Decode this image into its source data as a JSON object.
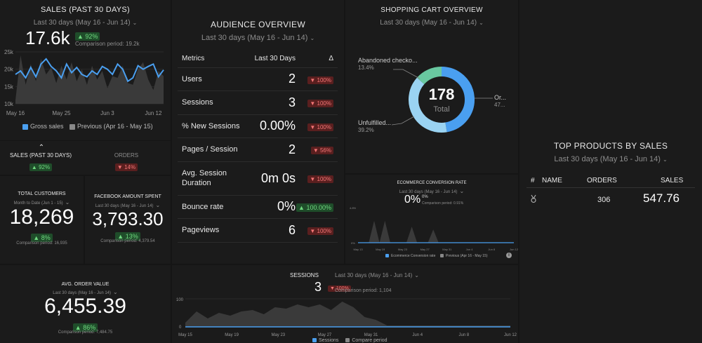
{
  "colors": {
    "accent": "#4a9ff0",
    "up": "#6fd97f",
    "down": "#f47676",
    "donut_dark": "#4a9ff0",
    "donut_light": "#9ad3f2",
    "donut_green": "#69c8a0"
  },
  "sales": {
    "title": "SALES (PAST 30 DAYS)",
    "period": "Last 30 days (May 16 - Jun 14)",
    "value": "17.6k",
    "delta": "▲ 92%",
    "comparison": "Comparison period: 19.2k",
    "legend_current": "Gross sales",
    "legend_previous": "Previous (Apr 16 - May 15)"
  },
  "chart_data": [
    {
      "type": "area",
      "title": "SALES (PAST 30 DAYS)",
      "x": [
        "May 16",
        "May 17",
        "May 18",
        "May 19",
        "May 20",
        "May 21",
        "May 22",
        "May 23",
        "May 24",
        "May 25",
        "May 26",
        "May 27",
        "May 28",
        "May 29",
        "May 30",
        "May 31",
        "Jun 1",
        "Jun 2",
        "Jun 3",
        "Jun 4",
        "Jun 5",
        "Jun 6",
        "Jun 7",
        "Jun 8",
        "Jun 9",
        "Jun 10",
        "Jun 11",
        "Jun 12",
        "Jun 13",
        "Jun 14"
      ],
      "xticks": [
        "May 16",
        "May 25",
        "Jun 3",
        "Jun 12"
      ],
      "ylim": [
        10000,
        25000
      ],
      "yticks": [
        "25k",
        "20k",
        "15k",
        "10k"
      ],
      "series": [
        {
          "name": "Gross sales",
          "values": [
            18500,
            19500,
            17500,
            20500,
            17800,
            21500,
            23000,
            20800,
            19500,
            17500,
            21500,
            19000,
            20500,
            18500,
            17800,
            19500,
            18500,
            20800,
            20000,
            18500,
            21500,
            20000,
            16500,
            17500,
            21000,
            20000,
            20800,
            21500,
            17800,
            19800
          ]
        },
        {
          "name": "Previous (Apr 16 - May 15)",
          "values": [
            11000,
            24000,
            15500,
            21500,
            16500,
            23000,
            18500,
            20500,
            16000,
            21000,
            17000,
            22000,
            16500,
            20000,
            15500,
            21000,
            17000,
            19500,
            14500,
            18000,
            17500,
            21000,
            16000,
            15500,
            20000,
            22000,
            17000,
            14000,
            19500,
            18000
          ]
        }
      ]
    },
    {
      "type": "pie",
      "title": "SHOPPING CART OVERVIEW",
      "categories": [
        "Ordered",
        "Unfulfilled checkouts",
        "Abandoned checkouts"
      ],
      "values": [
        47.4,
        39.2,
        13.4
      ]
    },
    {
      "type": "area",
      "title": "ECOMMERCE CONVERSION RATE",
      "x": [
        "May 15",
        "May 16",
        "May 17",
        "May 18",
        "May 19",
        "May 20",
        "May 21",
        "May 22",
        "May 23",
        "May 24",
        "May 25",
        "May 26",
        "May 27",
        "May 28",
        "May 29",
        "May 30",
        "May 31",
        "Jun 1",
        "Jun 2",
        "Jun 3",
        "Jun 4",
        "Jun 5",
        "Jun 6",
        "Jun 7",
        "Jun 8",
        "Jun 9",
        "Jun 10",
        "Jun 11",
        "Jun 12",
        "Jun 13"
      ],
      "xticks": [
        "May 13",
        "May 19",
        "May 23",
        "May 27",
        "May 31",
        "Jun 4",
        "Jun 8",
        "Jun 12"
      ],
      "ylim": [
        0,
        4.8
      ],
      "yticks": [
        "4.8%",
        "0%"
      ],
      "series": [
        {
          "name": "Ecommerce Conversion rate",
          "values": [
            0,
            0,
            0,
            0,
            0,
            0,
            0,
            0,
            0,
            0,
            0,
            0,
            0,
            0,
            0,
            0,
            0,
            0,
            0,
            0,
            0,
            0,
            0,
            0,
            0,
            0,
            0,
            0,
            0,
            0
          ]
        },
        {
          "name": "Previous (Apr 16 - May 15)",
          "values": [
            0,
            0,
            0,
            3.0,
            0,
            3.0,
            0,
            0,
            0,
            0,
            2.2,
            0,
            0,
            0,
            1.8,
            0,
            0,
            0,
            0,
            0,
            0,
            0,
            0,
            0,
            0,
            0,
            0,
            0,
            0,
            0
          ]
        }
      ]
    },
    {
      "type": "area",
      "title": "SESSIONS",
      "x": [
        "May 15",
        "May 16",
        "May 17",
        "May 18",
        "May 19",
        "May 20",
        "May 21",
        "May 22",
        "May 23",
        "May 24",
        "May 25",
        "May 26",
        "May 27",
        "May 28",
        "May 29",
        "May 30",
        "May 31",
        "Jun 1",
        "Jun 2",
        "Jun 3",
        "Jun 4",
        "Jun 5",
        "Jun 6",
        "Jun 7",
        "Jun 8",
        "Jun 9",
        "Jun 10",
        "Jun 11",
        "Jun 12",
        "Jun 13"
      ],
      "xticks": [
        "May 15",
        "May 19",
        "May 23",
        "May 27",
        "May 31",
        "Jun 4",
        "Jun 8",
        "Jun 12"
      ],
      "ylim": [
        0,
        100
      ],
      "yticks": [
        "100",
        "0"
      ],
      "series": [
        {
          "name": "Sessions",
          "values": [
            0,
            0,
            0,
            0,
            0,
            0,
            0,
            0,
            0,
            0,
            0,
            0,
            0,
            0,
            0,
            0,
            0,
            0,
            0,
            0,
            0,
            0,
            0,
            0,
            0,
            0,
            0,
            0,
            0,
            0
          ]
        },
        {
          "name": "Compare period",
          "values": [
            15,
            55,
            30,
            50,
            40,
            55,
            60,
            45,
            70,
            65,
            80,
            70,
            80,
            60,
            90,
            70,
            35,
            25,
            5,
            5,
            5,
            5,
            5,
            5,
            5,
            5,
            5,
            5,
            5,
            5
          ]
        }
      ]
    }
  ],
  "sales_orders": {
    "sales_label": "SALES (PAST 30 DAYS)",
    "sales_delta": "▲ 92%",
    "orders_label": "ORDERS",
    "orders_delta": "▼ 14%"
  },
  "total_customers": {
    "title": "TOTAL CUSTOMERS",
    "period": "Month to Date (Jun 1 - 15)",
    "value": "18,269",
    "delta": "▲ 8%",
    "comparison": "Comparison period: 16,935"
  },
  "facebook": {
    "title": "FACEBOOK AMOUNT SPENT",
    "period": "Last 30 days (May 16 - Jun 14)",
    "value": "3,793.30",
    "delta": "▲ 13%",
    "comparison": "Comparison period: 4,379.54"
  },
  "aov": {
    "title": "AVG. ORDER VALUE",
    "period": "Last 30 days (May 16 - Jun 14)",
    "value": "6,455.39",
    "delta": "▲ 86%",
    "comparison": "Comparison period: 7,484.75"
  },
  "audience": {
    "title": "AUDIENCE OVERVIEW",
    "period": "Last 30 days (May 16 - Jun 14)",
    "col_metrics": "Metrics",
    "col_period": "Last 30 Days",
    "col_delta": "Δ",
    "rows": [
      {
        "metric": "Users",
        "value": "2",
        "delta": "▼ 100%",
        "dir": "down"
      },
      {
        "metric": "Sessions",
        "value": "3",
        "delta": "▼ 100%",
        "dir": "down"
      },
      {
        "metric": "% New Sessions",
        "value": "0.00%",
        "delta": "▼ 100%",
        "dir": "down"
      },
      {
        "metric": "Pages / Session",
        "value": "2",
        "delta": "▼ 56%",
        "dir": "down"
      },
      {
        "metric": "Avg. Session Duration",
        "value": "0m 0s",
        "delta": "▼ 100%",
        "dir": "down"
      },
      {
        "metric": "Bounce rate",
        "value": "0%",
        "delta": "▲ 100.00%",
        "dir": "up"
      },
      {
        "metric": "Pageviews",
        "value": "6",
        "delta": "▼ 100%",
        "dir": "down"
      }
    ]
  },
  "cart": {
    "title": "SHOPPING CART OVERVIEW",
    "period": "Last 30 days (May 16 - Jun 14)",
    "total": "178",
    "total_label": "Total",
    "abandoned_label": "Abandoned checko...",
    "abandoned_pct": "13.4%",
    "unfulfilled_label": "Unfulfilled...",
    "unfulfilled_pct": "39.2%",
    "ordered_label": "Or...",
    "ordered_pct": "47..."
  },
  "conversion": {
    "title": "ECOMMERCE CONVERSION RATE",
    "period": "Last 30 days (May 16 - Jun 14)",
    "value": "0%",
    "delta": "0%",
    "comparison": "Comparison period: 0.91%",
    "legend_current": "Ecommerce Conversion rate",
    "legend_previous": "Previous (Apr 16 - May 15)"
  },
  "top_products": {
    "title": "TOP PRODUCTS BY SALES",
    "period": "Last 30 days (May 16 - Jun 14)",
    "col_num": "#",
    "col_name": "NAME",
    "col_orders": "ORDERS",
    "col_sales": "SALES",
    "row_orders": "306",
    "row_sales": "547.76",
    "row_icon": "medal-icon"
  },
  "sessions": {
    "title": "SESSIONS",
    "period": "Last 30 days (May 16 - Jun 14)",
    "value": "3",
    "delta": "▼ 100%",
    "comparison": "Comparison period: 1,104",
    "legend_current": "Sessions",
    "legend_previous": "Compare period"
  }
}
